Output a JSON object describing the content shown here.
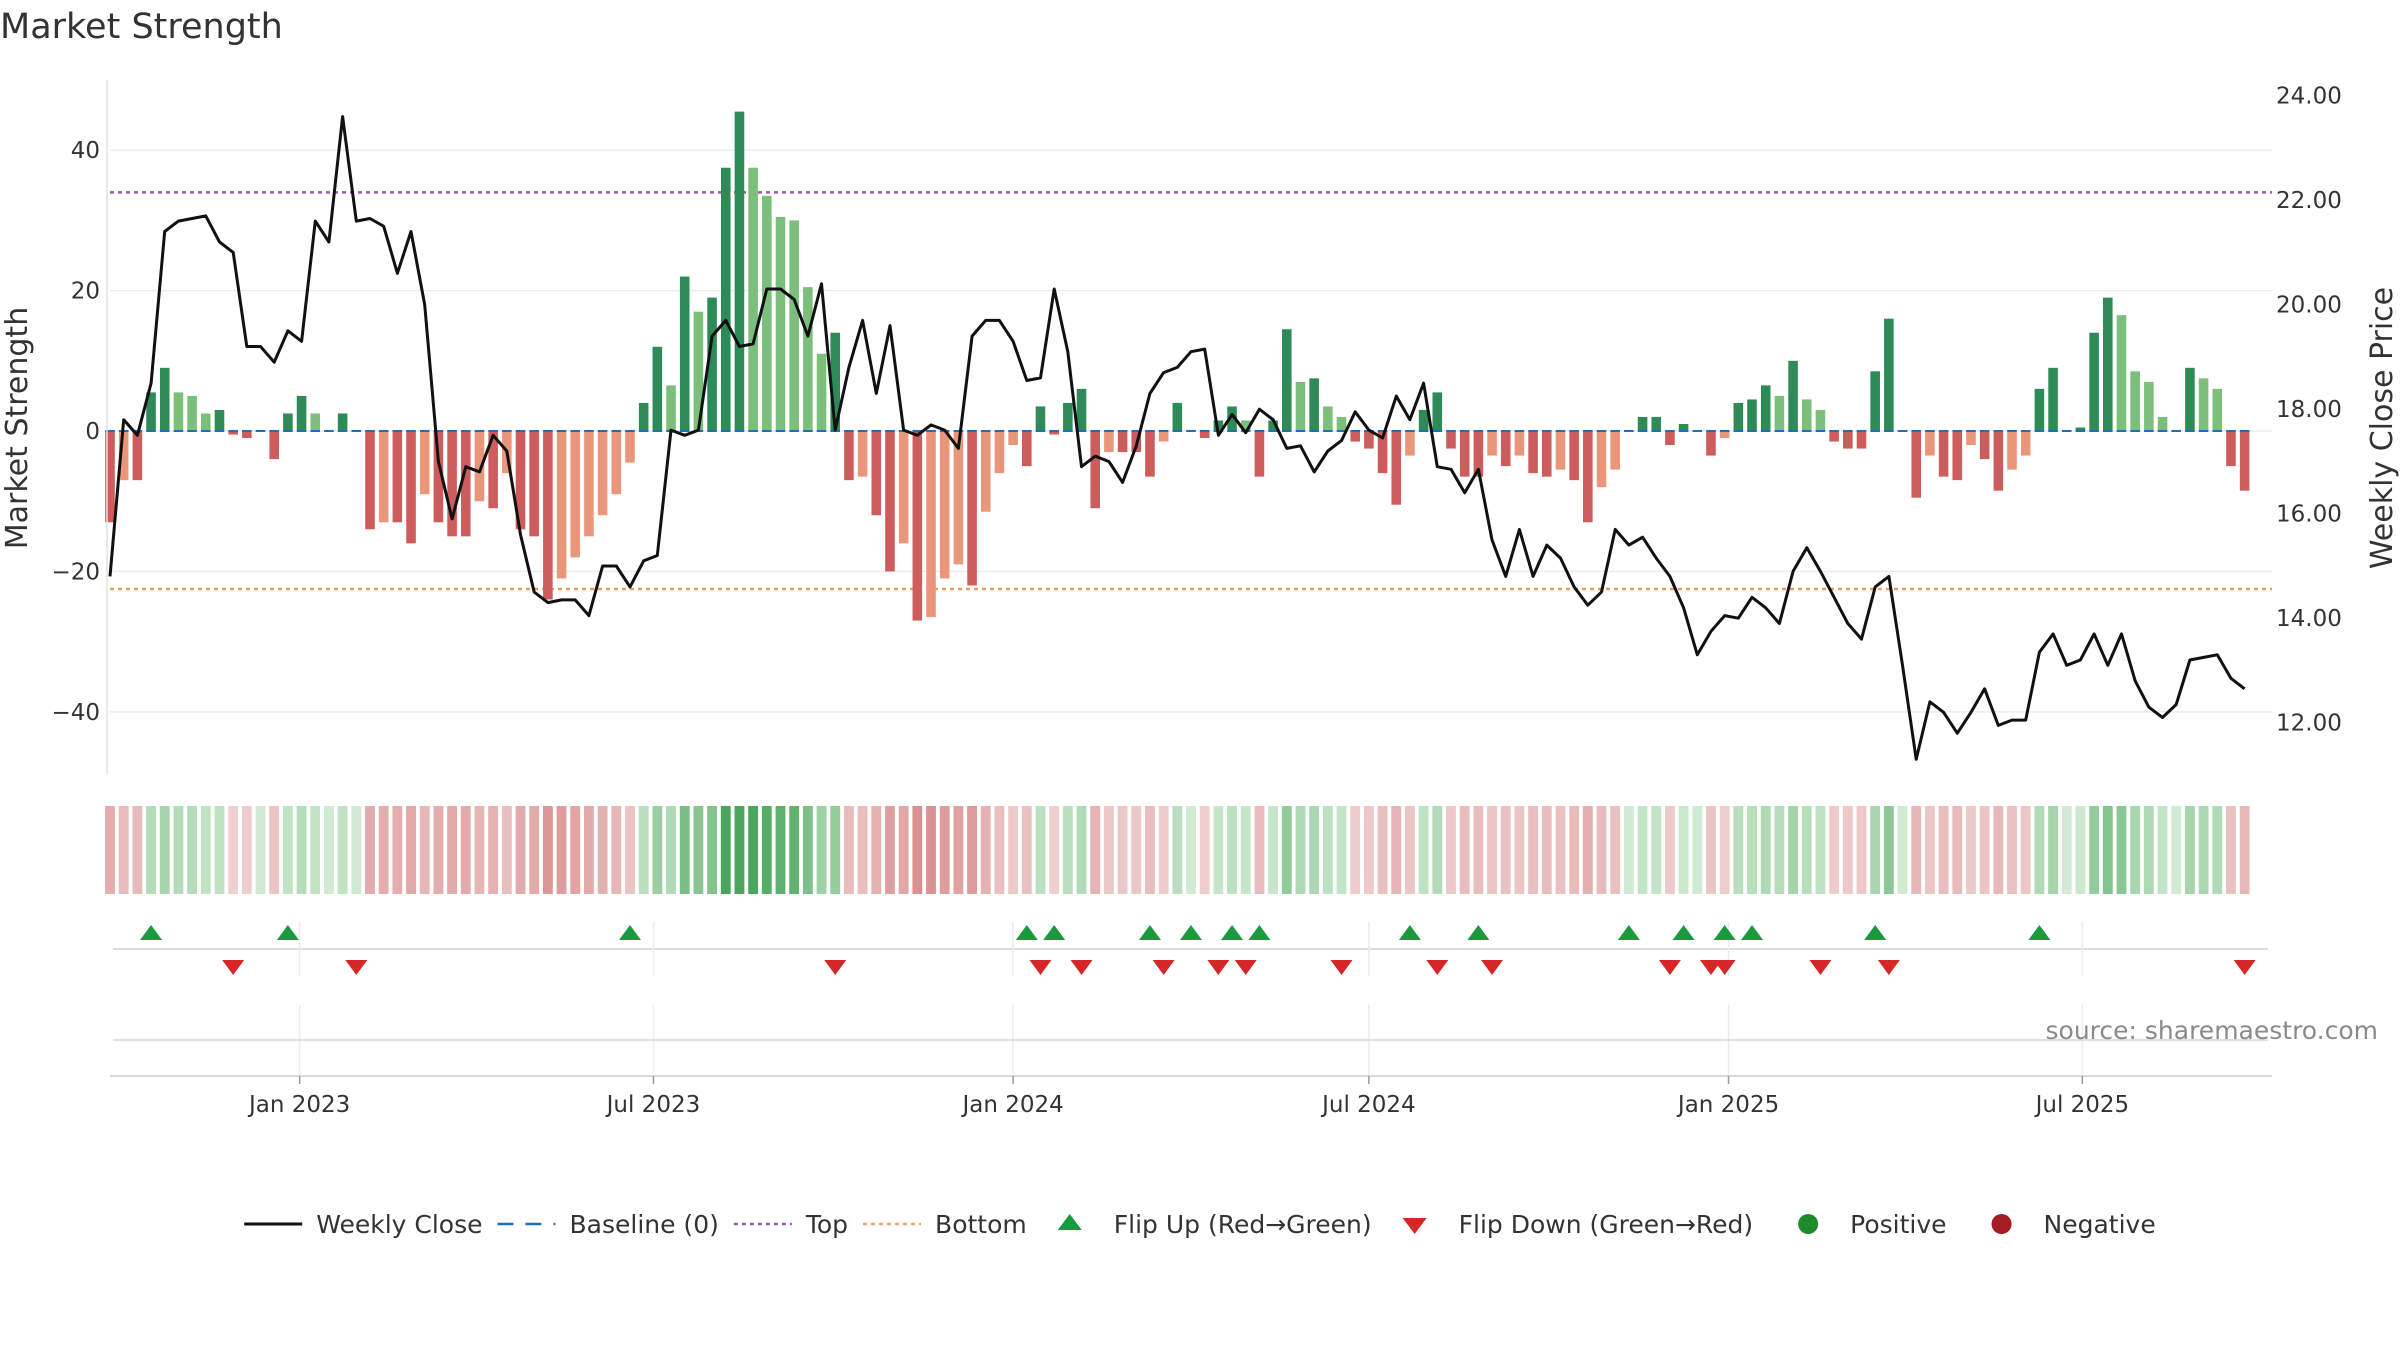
{
  "chart_data": {
    "type": "bar+line",
    "title": "Market Strength",
    "ylabel_left": "Market Strength",
    "ylabel_right": "Weekly Close Price",
    "source": "source: sharemaestro.com",
    "ylim_left": [
      -49,
      50
    ],
    "ylim_right": [
      11.0,
      24.3
    ],
    "yticks_left": [
      {
        "v": 40,
        "label": "40"
      },
      {
        "v": 20,
        "label": "20"
      },
      {
        "v": 0,
        "label": "0"
      },
      {
        "v": -20,
        "label": "−20"
      },
      {
        "v": -40,
        "label": "−40"
      }
    ],
    "yticks_right": [
      {
        "v": 24,
        "label": "24.00"
      },
      {
        "v": 22,
        "label": "22.00"
      },
      {
        "v": 20,
        "label": "20.00"
      },
      {
        "v": 18,
        "label": "18.00"
      },
      {
        "v": 16,
        "label": "16.00"
      },
      {
        "v": 14,
        "label": "14.00"
      },
      {
        "v": 12,
        "label": "12.00"
      }
    ],
    "x_range": [
      "2022-09-26",
      "2025-10-06"
    ],
    "xticks": [
      {
        "date": "2023-01-01",
        "label": "Jan 2023"
      },
      {
        "date": "2023-07-01",
        "label": "Jul 2023"
      },
      {
        "date": "2024-01-01",
        "label": "Jan 2024"
      },
      {
        "date": "2024-07-01",
        "label": "Jul 2024"
      },
      {
        "date": "2025-01-01",
        "label": "Jan 2025"
      },
      {
        "date": "2025-07-01",
        "label": "Jul 2025"
      }
    ],
    "start_date": "2022-09-26",
    "week_interval_days": 7,
    "top_line": 34,
    "bottom_line": -22.5,
    "baseline": 0,
    "strength": [
      -13,
      -7,
      -7,
      5.5,
      9,
      5.5,
      5,
      2.5,
      3,
      -0.5,
      -1,
      0,
      -4,
      2.5,
      5,
      2.5,
      0,
      2.5,
      0,
      -14,
      -13,
      -13,
      -16,
      -9,
      -13,
      -15,
      -15,
      -10,
      -11,
      -6,
      -14,
      -15,
      -24,
      -21,
      -18,
      -15,
      -12,
      -9,
      -4.5,
      4,
      12,
      6.5,
      22,
      17,
      19,
      37.5,
      45.5,
      37.5,
      33.5,
      30.5,
      30,
      20.5,
      11,
      14,
      -7,
      -6.5,
      -12,
      -20,
      -16,
      -27,
      -26.5,
      -21,
      -19,
      -22,
      -11.5,
      -6,
      -2,
      -5,
      3.5,
      -0.5,
      4,
      6,
      -11,
      -3,
      -3,
      -3,
      -6.5,
      -1.5,
      4,
      0,
      -1,
      1.5,
      3.5,
      1.5,
      -6.5,
      1.5,
      14.5,
      7,
      7.5,
      3.5,
      2,
      -1.5,
      -2.5,
      -6,
      -10.5,
      -3.5,
      3,
      5.5,
      -2.5,
      -6.5,
      -6.5,
      -3.5,
      -5,
      -3.5,
      -6,
      -6.5,
      -5.5,
      -7,
      -13,
      -8,
      -5.5,
      0,
      2,
      2,
      -2,
      1,
      0,
      -3.5,
      -1,
      4,
      4.5,
      6.5,
      5,
      10,
      4.5,
      3,
      -1.5,
      -2.5,
      -2.5,
      8.5,
      16,
      0,
      -9.5,
      -3.5,
      -6.5,
      -7,
      -2,
      -4,
      -8.5,
      -5.5,
      -3.5,
      6,
      9,
      0,
      0.5,
      14,
      19,
      16.5,
      8.5,
      7,
      2,
      0,
      9,
      7.5,
      6,
      -5,
      -8.5
    ],
    "price": [
      14.8,
      17.8,
      17.5,
      18.5,
      21.4,
      21.6,
      21.65,
      21.7,
      21.2,
      21,
      19.2,
      19.2,
      18.9,
      19.5,
      19.3,
      21.6,
      21.2,
      23.6,
      21.6,
      21.65,
      21.5,
      20.6,
      21.4,
      20,
      17,
      15.9,
      16.9,
      16.8,
      17.5,
      17.2,
      15.6,
      14.5,
      14.3,
      14.35,
      14.35,
      14.05,
      15,
      15,
      14.6,
      15.1,
      15.2,
      17.6,
      17.5,
      17.6,
      19.4,
      19.7,
      19.2,
      19.25,
      20.3,
      20.3,
      20.1,
      19.4,
      20.4,
      17.6,
      18.8,
      19.7,
      18.3,
      19.6,
      17.6,
      17.5,
      17.7,
      17.6,
      17.25,
      19.4,
      19.7,
      19.7,
      19.3,
      18.55,
      18.6,
      20.3,
      19.1,
      16.9,
      17.1,
      17,
      16.6,
      17.3,
      18.3,
      18.7,
      18.8,
      19.1,
      19.15,
      17.5,
      17.9,
      17.55,
      18,
      17.8,
      17.25,
      17.3,
      16.8,
      17.2,
      17.4,
      17.95,
      17.6,
      17.45,
      18.25,
      17.8,
      18.5,
      16.9,
      16.85,
      16.4,
      16.85,
      15.5,
      14.8,
      15.7,
      14.8,
      15.4,
      15.15,
      14.6,
      14.25,
      14.5,
      15.7,
      15.4,
      15.55,
      15.15,
      14.8,
      14.2,
      13.3,
      13.75,
      14.05,
      14,
      14.4,
      14.2,
      13.9,
      14.9,
      15.35,
      14.9,
      14.4,
      13.9,
      13.6,
      14.6,
      14.8,
      13.1,
      11.3,
      12.4,
      12.2,
      11.8,
      12.2,
      12.65,
      11.95,
      12.05,
      12.05,
      13.35,
      13.7,
      13.1,
      13.2,
      13.7,
      13.1,
      13.7,
      12.8,
      12.3,
      12.1,
      12.35,
      13.2,
      13.25,
      13.3,
      12.85,
      12.65
    ],
    "flips_up": [
      3,
      13,
      38,
      67,
      69,
      76,
      79,
      82,
      84,
      95,
      100,
      111,
      115,
      118,
      120,
      129,
      141
    ],
    "flips_down": [
      9,
      18,
      53,
      68,
      71,
      77,
      81,
      83,
      90,
      97,
      101,
      114,
      117,
      118,
      125,
      130,
      156
    ],
    "legend": [
      {
        "key": "close",
        "label": "Weekly Close",
        "color": "#111111"
      },
      {
        "key": "baseline",
        "label": "Baseline (0)",
        "color": "#1f6fb4"
      },
      {
        "key": "top",
        "label": "Top",
        "color": "#9b59b6"
      },
      {
        "key": "bottom",
        "label": "Bottom",
        "color": "#e0a060"
      },
      {
        "key": "flipup",
        "label": "Flip Up (Red→Green)",
        "color": "#1a9a3c"
      },
      {
        "key": "flipdown",
        "label": "Flip Down (Green→Red)",
        "color": "#d62728"
      },
      {
        "key": "positive",
        "label": "Positive",
        "color": "#1e8a2a"
      },
      {
        "key": "negative",
        "label": "Negative",
        "color": "#a51c24"
      }
    ],
    "legend_placement": "bottom-center",
    "grid": "horizontal",
    "colors": {
      "pos_strong": "#2e8b57",
      "pos_weak": "#7bbf7b",
      "neg_strong": "#cd5c5c",
      "neg_weak": "#e9967a",
      "top": "#9b59b6",
      "bottom": "#e0a060",
      "baseline": "#1f6fb4",
      "close": "#111111"
    }
  }
}
